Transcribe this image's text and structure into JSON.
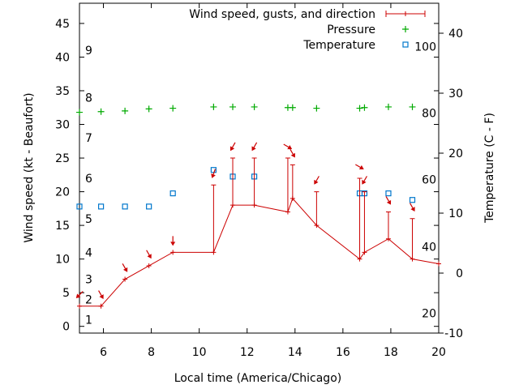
{
  "chart_data": {
    "type": "line",
    "xlabel": "Local time (America/Chicago)",
    "ylabel": "Wind speed (kt - Beaufort)",
    "y2label": "Temperature (C - F)",
    "xlim": [
      5,
      20
    ],
    "ylim": [
      -1,
      48
    ],
    "y2lim": [
      -10,
      45
    ],
    "x_ticks": [
      6,
      8,
      10,
      12,
      14,
      16,
      18,
      20
    ],
    "y_ticks": [
      0,
      5,
      10,
      15,
      20,
      25,
      30,
      35,
      40,
      45
    ],
    "y2_ticks": [
      -10,
      0,
      10,
      20,
      30,
      40
    ],
    "beaufort_labels": [
      {
        "label": "1",
        "kt": 1
      },
      {
        "label": "2",
        "kt": 4
      },
      {
        "label": "3",
        "kt": 7
      },
      {
        "label": "4",
        "kt": 11
      },
      {
        "label": "5",
        "kt": 16
      },
      {
        "label": "6",
        "kt": 22
      },
      {
        "label": "7",
        "kt": 28
      },
      {
        "label": "8",
        "kt": 34
      },
      {
        "label": "9",
        "kt": 41
      }
    ],
    "fahrenheit_labels": [
      {
        "label": "20",
        "c": -6.7
      },
      {
        "label": "40",
        "c": 4.4
      },
      {
        "label": "60",
        "c": 15.6
      },
      {
        "label": "80",
        "c": 26.7
      },
      {
        "label": "100",
        "c": 37.8
      }
    ],
    "legend_placement": "top-right",
    "series": [
      {
        "name": "Wind speed, gusts, and direction",
        "color": "#cc0000",
        "x": [
          5,
          5.9,
          6.9,
          7.9,
          8.9,
          10.6,
          11.4,
          12.3,
          13.7,
          13.9,
          14.9,
          16.7,
          16.9,
          17.9,
          18.9,
          20
        ],
        "values": [
          3,
          3,
          7,
          9,
          11,
          11,
          18,
          18,
          17,
          19,
          15,
          10,
          11,
          13,
          10,
          9.3
        ],
        "gusts": [
          null,
          null,
          null,
          null,
          null,
          21,
          25,
          25,
          25,
          24,
          20,
          22,
          20,
          17,
          16,
          null
        ],
        "direction_deg": [
          45,
          330,
          330,
          330,
          0,
          20,
          30,
          30,
          300,
          330,
          30,
          300,
          30,
          330,
          330,
          null
        ]
      },
      {
        "name": "Pressure",
        "color": "#00aa00",
        "x": [
          5,
          5.9,
          6.9,
          7.9,
          8.9,
          10.6,
          11.4,
          12.3,
          13.7,
          13.9,
          14.9,
          16.7,
          16.9,
          17.9,
          18.9
        ],
        "values": [
          31.8,
          31.9,
          32.0,
          32.3,
          32.4,
          32.6,
          32.6,
          32.6,
          32.5,
          32.5,
          32.4,
          32.4,
          32.5,
          32.6,
          32.6
        ]
      },
      {
        "name": "Temperature",
        "color": "#0077cc",
        "x": [
          5,
          5.9,
          6.9,
          7.9,
          8.9,
          10.6,
          11.4,
          12.3,
          16.7,
          16.9,
          17.9,
          18.9
        ],
        "values": [
          11.1,
          11.1,
          11.1,
          11.1,
          13.3,
          17.2,
          16.1,
          16.1,
          13.3,
          13.3,
          13.3,
          12.2
        ]
      }
    ]
  }
}
